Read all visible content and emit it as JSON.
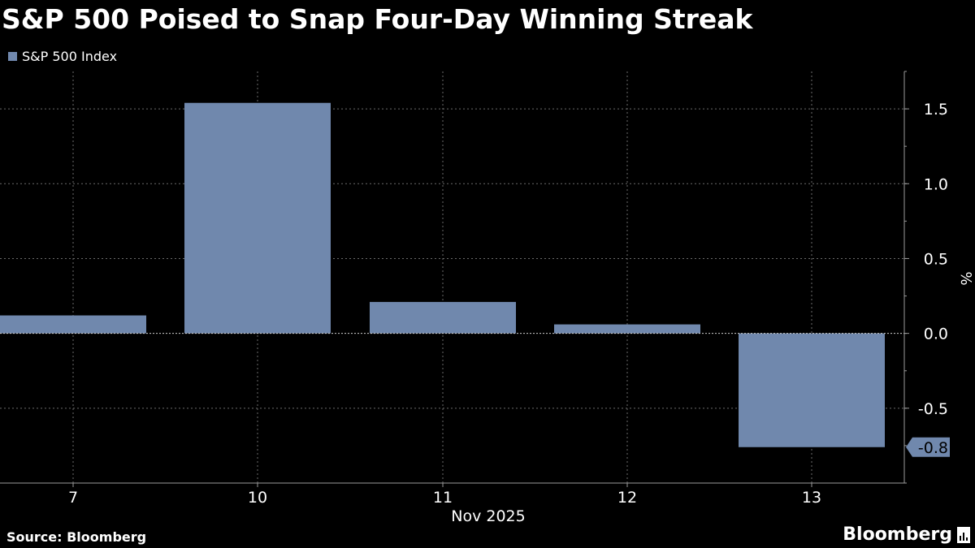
{
  "title": "S&P 500 Poised to Snap Four-Day Winning Streak",
  "source": "Source: Bloomberg",
  "brand": "Bloomberg",
  "colors": {
    "background": "#000000",
    "bar": "#7088ad",
    "grid": "#6b6b6b",
    "text": "#ffffff"
  },
  "chart_data": {
    "type": "bar",
    "categories": [
      "7",
      "10",
      "11",
      "12",
      "13"
    ],
    "series": [
      {
        "name": "S&P 500 Index",
        "values": [
          0.12,
          1.54,
          0.21,
          0.06,
          -0.76
        ]
      }
    ],
    "xlabel": "Nov 2025",
    "ylabel": "%",
    "ylim": [
      -1.0,
      1.75
    ],
    "yticks": [
      -0.5,
      0.0,
      0.5,
      1.0,
      1.5
    ],
    "ytick_labels": [
      "-0.5",
      "0.0",
      "0.5",
      "1.0",
      "1.5"
    ],
    "last_value_label": "-0.8",
    "axis_side": "right",
    "grid": true,
    "legend_position": "top-left"
  }
}
